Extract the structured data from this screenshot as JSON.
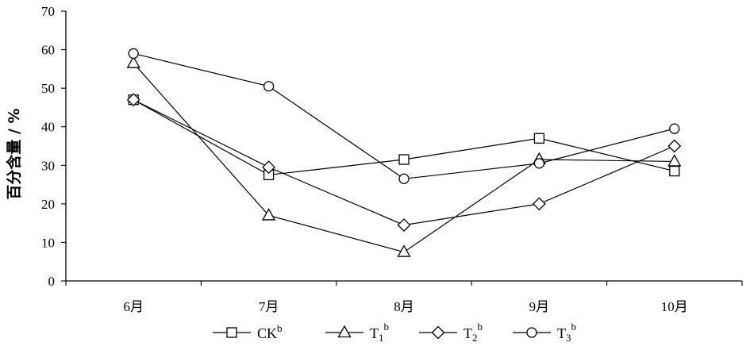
{
  "chart_data": {
    "type": "line",
    "title": "",
    "xlabel": "",
    "ylabel": "百分含量 / %",
    "categories": [
      "6月",
      "7月",
      "8月",
      "9月",
      "10月"
    ],
    "ylim": [
      0,
      70
    ],
    "yticks": [
      0,
      10,
      20,
      30,
      40,
      50,
      60,
      70
    ],
    "grid": false,
    "legend_position": "bottom",
    "series": [
      {
        "name": "CK",
        "name_sup": "b",
        "name_sub": "",
        "marker": "square",
        "values": [
          47,
          27.5,
          31.5,
          37,
          28.5
        ]
      },
      {
        "name": "T",
        "name_sup": "b",
        "name_sub": "1",
        "marker": "triangle",
        "values": [
          56.5,
          17,
          7.5,
          31.5,
          31
        ]
      },
      {
        "name": "T",
        "name_sup": "b",
        "name_sub": "2",
        "marker": "diamond",
        "values": [
          47,
          29.5,
          14.5,
          20,
          35
        ]
      },
      {
        "name": "T",
        "name_sup": "b",
        "name_sub": "3",
        "marker": "circle",
        "values": [
          59,
          50.5,
          26.5,
          30.5,
          39.5
        ]
      }
    ]
  }
}
